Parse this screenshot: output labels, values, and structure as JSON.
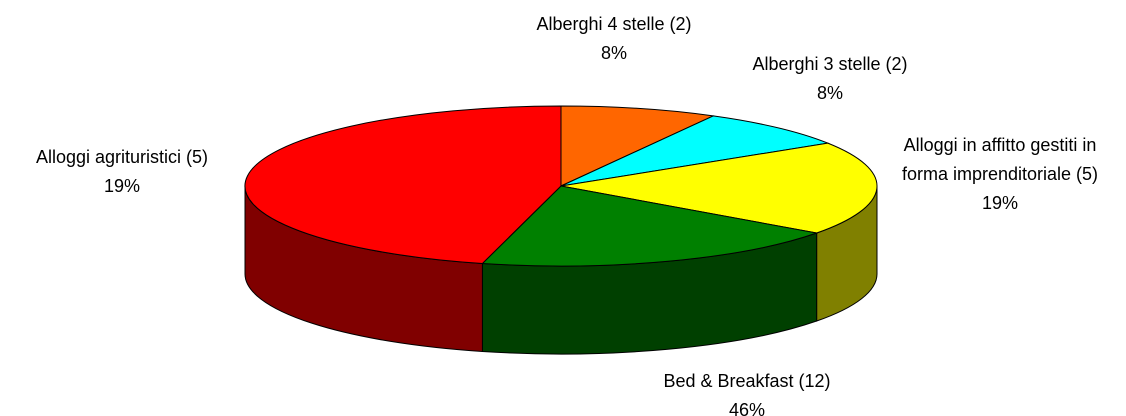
{
  "chart_data": {
    "type": "pie3d",
    "categories": [
      "Alberghi 4 stelle (2)",
      "Alberghi 3 stelle (2)",
      "Alloggi in affitto gestiti in forma imprenditoriale (5)",
      "Alloggi agrituristici (5)",
      "Bed & Breakfast (12)"
    ],
    "values": [
      8,
      8,
      19,
      19,
      46
    ],
    "value_labels": [
      "8%",
      "8%",
      "19%",
      "19%",
      "46%"
    ],
    "colors": [
      "#ff6600",
      "#00ffff",
      "#ffff00",
      "#008000",
      "#ff0000"
    ]
  }
}
